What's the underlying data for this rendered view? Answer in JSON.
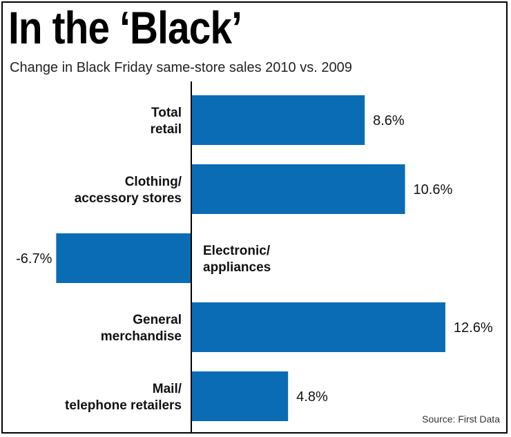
{
  "title": "In the ‘Black’",
  "subtitle": "Change in Black Friday same-store sales 2010 vs. 2009",
  "source": "Source: First Data",
  "colors": {
    "bar": "#0a6cb5",
    "text": "#111111"
  },
  "chart_data": {
    "type": "bar",
    "orientation": "horizontal",
    "categories": [
      "Total\nretail",
      "Clothing/\naccessory stores",
      "Electronic/\nappliances",
      "General\nmerchandise",
      "Mail/\ntelephone retailers"
    ],
    "values": [
      8.6,
      10.6,
      -6.7,
      12.6,
      4.8
    ],
    "value_labels": [
      "8.6%",
      "10.6%",
      "-6.7%",
      "12.6%",
      "4.8%"
    ],
    "title": "In the ‘Black’",
    "subtitle": "Change in Black Friday same-store sales 2010 vs. 2009",
    "xlabel": "",
    "ylabel": "",
    "xlim": [
      -6.7,
      12.6
    ],
    "grid": false,
    "legend": "none"
  }
}
